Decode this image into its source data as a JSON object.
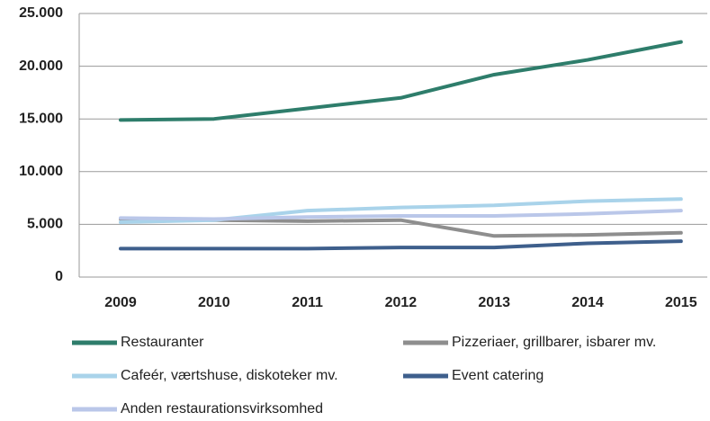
{
  "chart_data": {
    "type": "line",
    "categories": [
      "2009",
      "2010",
      "2011",
      "2012",
      "2013",
      "2014",
      "2015"
    ],
    "series": [
      {
        "name": "Restauranter",
        "color": "#2e7d6b",
        "values": [
          14900,
          15000,
          16000,
          17000,
          19200,
          20600,
          22300
        ]
      },
      {
        "name": "Pizzeriaer, grillbarer, isbarer mv.",
        "color": "#8e8e8e",
        "values": [
          5500,
          5400,
          5300,
          5400,
          3900,
          4000,
          4200
        ]
      },
      {
        "name": "Cafeér, værtshuse, diskoteker mv.",
        "color": "#a9d3ea",
        "values": [
          5200,
          5400,
          6300,
          6600,
          6800,
          7200,
          7400
        ]
      },
      {
        "name": "Event catering",
        "color": "#3e5f8c",
        "values": [
          2700,
          2700,
          2700,
          2800,
          2800,
          3200,
          3400
        ]
      },
      {
        "name": "Anden restaurationsvirksomhed",
        "color": "#bac7e9",
        "values": [
          5600,
          5500,
          5700,
          5800,
          5800,
          6000,
          6300
        ]
      }
    ],
    "ylim": [
      0,
      25000
    ],
    "yticks": [
      0,
      {
        "value": 5000,
        "label": "5.000"
      },
      {
        "value": 10000,
        "label": "10.000"
      },
      {
        "value": 15000,
        "label": "15.000"
      },
      {
        "value": 20000,
        "label": "20.000"
      },
      {
        "value": 25000,
        "label": "25.000"
      }
    ],
    "grid": true
  }
}
